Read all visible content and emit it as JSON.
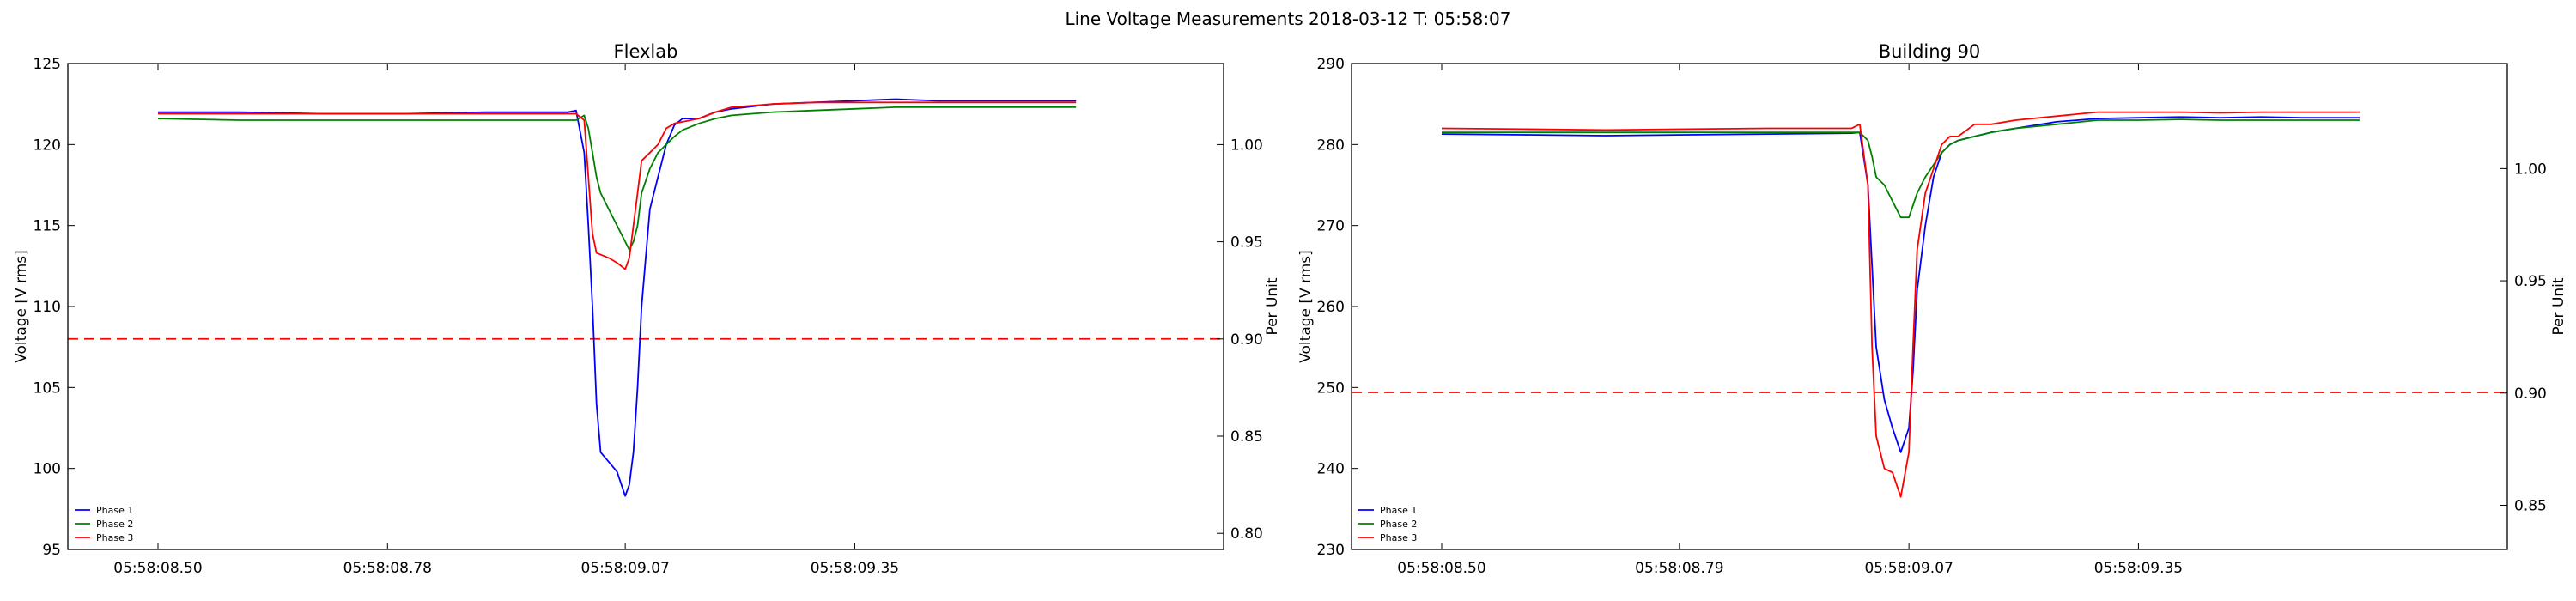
{
  "figure": {
    "suptitle": "Line Voltage Measurements 2018-03-12 T: 05:58:07"
  },
  "chart_data": [
    {
      "type": "line",
      "title": "Flexlab",
      "xlabel": "",
      "ylabel": "Voltage [V rms]",
      "ylabel_right": "Per Unit",
      "x_tick_labels": [
        "05:58:08.50",
        "05:58:08.78",
        "05:58:09.07",
        "05:58:09.35"
      ],
      "x_tick_values": [
        8.5,
        8.78,
        9.07,
        9.35
      ],
      "xlim": [
        8.39,
        9.8
      ],
      "ylim": [
        95,
        125
      ],
      "yticks": [
        95,
        100,
        105,
        110,
        115,
        120,
        125
      ],
      "ylim_right": [
        0.7917,
        1.0417
      ],
      "yticks_right": [
        "0.80",
        "0.85",
        "0.90",
        "0.95",
        "1.00"
      ],
      "threshold": {
        "y": 108,
        "color": "#ff0000",
        "style": "dashed"
      },
      "x": [
        8.5,
        8.6,
        8.7,
        8.8,
        8.9,
        9.0,
        9.01,
        9.02,
        9.025,
        9.03,
        9.035,
        9.04,
        9.05,
        9.06,
        9.07,
        9.075,
        9.08,
        9.085,
        9.09,
        9.1,
        9.11,
        9.12,
        9.13,
        9.14,
        9.16,
        9.18,
        9.2,
        9.25,
        9.3,
        9.35,
        9.4,
        9.45,
        9.5,
        9.55,
        9.6,
        9.62
      ],
      "series": [
        {
          "name": "Phase 1",
          "color": "#0000ff",
          "values": [
            122.0,
            122.0,
            121.9,
            121.9,
            122.0,
            122.0,
            122.1,
            119.5,
            115.0,
            110.0,
            104.0,
            101.0,
            100.4,
            99.8,
            98.3,
            99.0,
            101.0,
            105.0,
            110.0,
            116.0,
            118.0,
            120.0,
            121.2,
            121.6,
            121.6,
            122.0,
            122.2,
            122.5,
            122.6,
            122.7,
            122.8,
            122.7,
            122.7,
            122.7,
            122.7,
            122.7
          ]
        },
        {
          "name": "Phase 2",
          "color": "#008000",
          "values": [
            121.6,
            121.5,
            121.5,
            121.5,
            121.5,
            121.5,
            121.5,
            121.8,
            121.0,
            119.5,
            118.0,
            117.0,
            116.0,
            115.0,
            114.0,
            113.5,
            114.0,
            115.0,
            117.0,
            118.5,
            119.5,
            120.0,
            120.5,
            120.9,
            121.3,
            121.6,
            121.8,
            122.0,
            122.1,
            122.2,
            122.3,
            122.3,
            122.3,
            122.3,
            122.3,
            122.3
          ]
        },
        {
          "name": "Phase 3",
          "color": "#ff0000",
          "values": [
            121.9,
            121.9,
            121.9,
            121.9,
            121.9,
            121.9,
            121.9,
            121.5,
            118.0,
            114.5,
            113.3,
            113.2,
            113.0,
            112.7,
            112.3,
            113.0,
            115.0,
            117.0,
            119.0,
            119.5,
            120.0,
            121.0,
            121.3,
            121.4,
            121.6,
            122.0,
            122.3,
            122.5,
            122.6,
            122.6,
            122.6,
            122.6,
            122.6,
            122.6,
            122.6,
            122.6
          ]
        }
      ],
      "legend": {
        "placement": "lower-left"
      }
    },
    {
      "type": "line",
      "title": "Building 90",
      "xlabel": "",
      "ylabel": "Voltage [V rms]",
      "ylabel_right": "Per Unit",
      "x_tick_labels": [
        "05:58:08.50",
        "05:58:08.79",
        "05:58:09.07",
        "05:58:09.35"
      ],
      "x_tick_values": [
        8.5,
        8.79,
        9.07,
        9.35
      ],
      "xlim": [
        8.39,
        9.8
      ],
      "ylim": [
        230,
        290
      ],
      "yticks": [
        230,
        240,
        250,
        260,
        270,
        280,
        290
      ],
      "ylim_right": [
        0.8303,
        1.0468
      ],
      "yticks_right": [
        "0.85",
        "0.90",
        "0.95",
        "1.00"
      ],
      "threshold": {
        "y": 249.4,
        "color": "#ff0000",
        "style": "dashed"
      },
      "x": [
        8.5,
        8.6,
        8.7,
        8.8,
        8.9,
        9.0,
        9.01,
        9.02,
        9.025,
        9.03,
        9.04,
        9.05,
        9.06,
        9.07,
        9.075,
        9.08,
        9.09,
        9.1,
        9.11,
        9.12,
        9.13,
        9.15,
        9.17,
        9.2,
        9.25,
        9.3,
        9.35,
        9.4,
        9.45,
        9.5,
        9.55,
        9.6,
        9.62
      ],
      "series": [
        {
          "name": "Phase 1",
          "color": "#0000ff",
          "values": [
            281.3,
            281.2,
            281.1,
            281.2,
            281.3,
            281.4,
            281.5,
            275.0,
            265.0,
            255.0,
            248.5,
            245.0,
            242.0,
            245.0,
            252.0,
            262.0,
            270.0,
            276.0,
            279.0,
            280.0,
            280.5,
            281.0,
            281.5,
            282.0,
            282.8,
            283.2,
            283.3,
            283.4,
            283.3,
            283.4,
            283.3,
            283.3,
            283.3
          ]
        },
        {
          "name": "Phase 2",
          "color": "#008000",
          "values": [
            281.5,
            281.5,
            281.5,
            281.5,
            281.5,
            281.5,
            281.5,
            280.5,
            278.5,
            276.0,
            275.0,
            273.0,
            271.0,
            271.0,
            272.5,
            274.0,
            276.0,
            277.5,
            279.0,
            280.0,
            280.5,
            281.0,
            281.5,
            282.0,
            282.5,
            283.0,
            283.0,
            283.1,
            283.0,
            283.0,
            283.0,
            283.0,
            283.0
          ]
        },
        {
          "name": "Phase 3",
          "color": "#ff0000",
          "values": [
            282.0,
            281.9,
            281.8,
            281.9,
            282.0,
            282.0,
            282.5,
            275.0,
            255.0,
            244.0,
            240.0,
            239.5,
            236.5,
            242.0,
            255.0,
            267.0,
            274.0,
            277.0,
            280.0,
            281.0,
            281.0,
            282.5,
            282.5,
            283.0,
            283.5,
            284.0,
            284.0,
            284.0,
            283.9,
            284.0,
            284.0,
            284.0,
            284.0
          ]
        }
      ],
      "legend": {
        "placement": "lower-left"
      }
    }
  ]
}
